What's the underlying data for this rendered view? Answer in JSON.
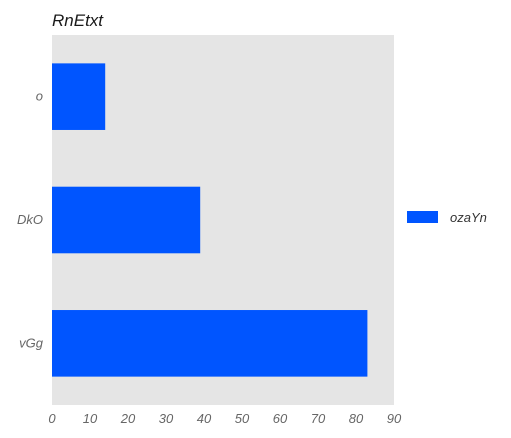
{
  "chart_data": {
    "type": "bar",
    "orientation": "horizontal",
    "title": "RnEtxt",
    "xlabel": "",
    "ylabel": "",
    "categories": [
      "o",
      "DkO",
      "vGg"
    ],
    "series": [
      {
        "name": "ozaYn",
        "values": [
          14,
          39,
          83
        ]
      }
    ],
    "xlim": [
      0,
      90
    ],
    "xticks": [
      "0",
      "10",
      "20",
      "30",
      "40",
      "50",
      "60",
      "70",
      "80",
      "90"
    ],
    "grid": false,
    "legend_position": "right",
    "colors": {
      "bar": "#0055ff",
      "plot_background": "#e5e5e5",
      "page_background": "#ffffff"
    }
  }
}
